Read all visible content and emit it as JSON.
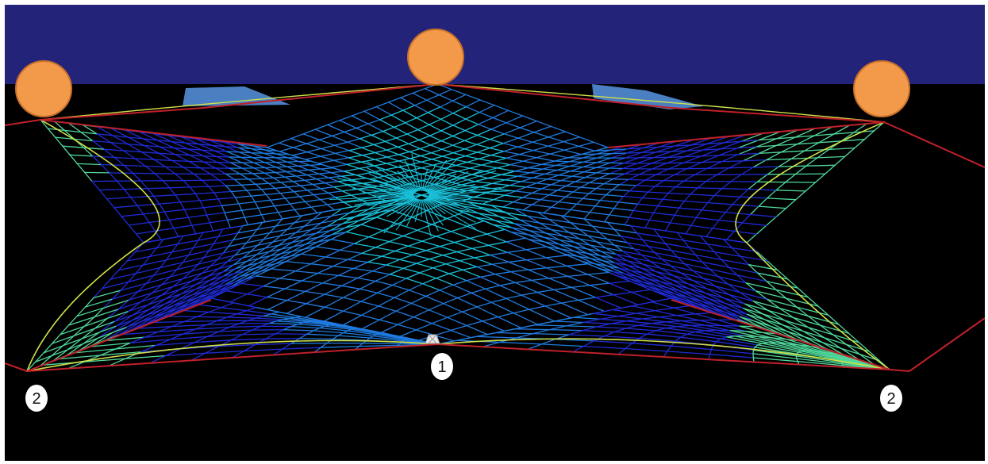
{
  "colors": {
    "water": "#23237a",
    "background": "#000000",
    "float": "#f2994a",
    "float_edge": "#c8702a",
    "vane": "#4a7fc1",
    "rope": "#c0202a",
    "mesh_palette": [
      "#1f2bd6",
      "#1f7be0",
      "#18c0d8",
      "#4fd89a",
      "#cfe04a"
    ]
  },
  "callouts": {
    "center_bottom": "1",
    "left_corner": "2",
    "right_corner": "2"
  },
  "icons": {
    "float": "circle-float-icon",
    "vane": "trawl-door-icon",
    "sinker": "cod-end-mesh-icon"
  }
}
